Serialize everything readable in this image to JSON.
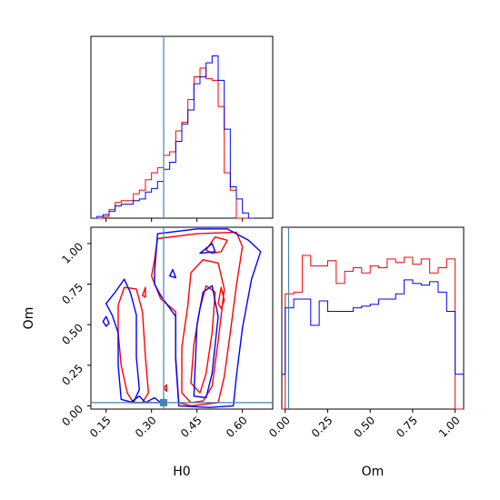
{
  "chart_data": {
    "type": "corner",
    "parameters": [
      "H0",
      "Om"
    ],
    "truth": {
      "H0": 0.34,
      "Om": 0.02
    },
    "truth_color": "#4682b4",
    "series": [
      {
        "color": "#ff0000"
      },
      {
        "color": "#0000ff"
      }
    ],
    "panels": {
      "h0_hist": {
        "type": "histogram",
        "xlim": [
          0.1,
          0.7
        ],
        "bin_edges": [
          0.1,
          0.12,
          0.14,
          0.16,
          0.18,
          0.2,
          0.22,
          0.24,
          0.26,
          0.28,
          0.3,
          0.32,
          0.34,
          0.36,
          0.38,
          0.4,
          0.42,
          0.44,
          0.46,
          0.48,
          0.5,
          0.52,
          0.54,
          0.56,
          0.58,
          0.6,
          0.62,
          0.64
        ],
        "counts": [
          [
            0.0,
            0.0,
            0.01,
            0.05,
            0.09,
            0.1,
            0.1,
            0.14,
            0.16,
            0.22,
            0.26,
            0.29,
            0.36,
            0.38,
            0.5,
            0.55,
            0.68,
            0.81,
            0.86,
            0.8,
            0.79,
            0.64,
            0.26,
            0.16,
            0.0,
            0.0,
            0.0
          ],
          [
            0.0,
            0.01,
            0.02,
            0.04,
            0.07,
            0.08,
            0.08,
            0.1,
            0.11,
            0.15,
            0.17,
            0.21,
            0.28,
            0.32,
            0.44,
            0.54,
            0.62,
            0.77,
            0.81,
            0.89,
            0.93,
            0.79,
            0.51,
            0.18,
            0.11,
            0.03,
            0.0
          ]
        ]
      },
      "om_hist": {
        "type": "histogram",
        "xlim": [
          -0.02,
          1.05
        ],
        "bin_edges": [
          -0.02,
          0.0,
          0.05,
          0.1,
          0.15,
          0.2,
          0.25,
          0.3,
          0.35,
          0.4,
          0.45,
          0.5,
          0.55,
          0.6,
          0.65,
          0.7,
          0.75,
          0.8,
          0.85,
          0.9,
          0.95,
          1.0,
          1.05
        ],
        "counts": [
          [
            0.0,
            0.66,
            0.67,
            0.88,
            0.82,
            0.82,
            0.85,
            0.72,
            0.79,
            0.81,
            0.78,
            0.82,
            0.81,
            0.86,
            0.84,
            0.87,
            0.83,
            0.86,
            0.78,
            0.81,
            0.86,
            0.0
          ],
          [
            0.2,
            0.58,
            0.63,
            0.63,
            0.48,
            0.62,
            0.56,
            0.56,
            0.56,
            0.58,
            0.59,
            0.6,
            0.63,
            0.63,
            0.66,
            0.74,
            0.72,
            0.71,
            0.73,
            0.67,
            0.56,
            0.2
          ]
        ]
      },
      "h0_om_2d": {
        "type": "contour",
        "xlim": [
          0.1,
          0.7
        ],
        "ylim": [
          -0.02,
          1.1
        ],
        "contours": [
          {
            "series": 0,
            "points": [
              [
                0.22,
                0.08
              ],
              [
                0.2,
                0.25
              ],
              [
                0.19,
                0.45
              ],
              [
                0.19,
                0.62
              ],
              [
                0.21,
                0.73
              ],
              [
                0.25,
                0.72
              ],
              [
                0.27,
                0.58
              ],
              [
                0.28,
                0.3
              ],
              [
                0.29,
                0.08
              ],
              [
                0.27,
                0.02
              ],
              [
                0.24,
                0.02
              ]
            ]
          },
          {
            "series": 0,
            "points": [
              [
                0.31,
                0.9
              ],
              [
                0.32,
                1.03
              ],
              [
                0.45,
                1.06
              ],
              [
                0.58,
                1.07
              ],
              [
                0.6,
                0.98
              ],
              [
                0.58,
                0.74
              ],
              [
                0.56,
                0.45
              ],
              [
                0.54,
                0.18
              ],
              [
                0.52,
                0.02
              ],
              [
                0.43,
                0.0
              ],
              [
                0.39,
                0.02
              ],
              [
                0.38,
                0.3
              ],
              [
                0.38,
                0.58
              ],
              [
                0.33,
                0.66
              ],
              [
                0.3,
                0.8
              ]
            ]
          },
          {
            "series": 0,
            "points": [
              [
                0.4,
                0.08
              ],
              [
                0.4,
                0.36
              ],
              [
                0.42,
                0.62
              ],
              [
                0.43,
                0.82
              ],
              [
                0.47,
                0.9
              ],
              [
                0.52,
                0.88
              ],
              [
                0.54,
                0.72
              ],
              [
                0.52,
                0.4
              ],
              [
                0.5,
                0.12
              ],
              [
                0.47,
                0.03
              ],
              [
                0.43,
                0.02
              ]
            ]
          },
          {
            "series": 0,
            "points": [
              [
                0.43,
                0.14
              ],
              [
                0.44,
                0.38
              ],
              [
                0.46,
                0.6
              ],
              [
                0.48,
                0.74
              ],
              [
                0.51,
                0.7
              ],
              [
                0.5,
                0.45
              ],
              [
                0.48,
                0.2
              ],
              [
                0.46,
                0.08
              ]
            ]
          },
          {
            "series": 0,
            "points": [
              [
                0.48,
                0.96
              ],
              [
                0.51,
                1.04
              ],
              [
                0.55,
                1.02
              ],
              [
                0.53,
                0.95
              ],
              [
                0.5,
                0.94
              ]
            ]
          },
          {
            "series": 0,
            "points": [
              [
                0.52,
                0.63
              ],
              [
                0.53,
                0.73
              ],
              [
                0.54,
                0.65
              ],
              [
                0.53,
                0.6
              ]
            ]
          },
          {
            "series": 0,
            "points": [
              [
                0.27,
                0.68
              ],
              [
                0.28,
                0.73
              ],
              [
                0.28,
                0.67
              ]
            ]
          },
          {
            "series": 0,
            "points": [
              [
                0.35,
                0.13
              ],
              [
                0.35,
                0.09
              ],
              [
                0.34,
                0.11
              ]
            ]
          },
          {
            "series": 1,
            "points": [
              [
                0.2,
                0.04
              ],
              [
                0.19,
                0.25
              ],
              [
                0.19,
                0.45
              ],
              [
                0.17,
                0.56
              ],
              [
                0.15,
                0.63
              ],
              [
                0.18,
                0.7
              ],
              [
                0.21,
                0.78
              ],
              [
                0.23,
                0.7
              ],
              [
                0.25,
                0.56
              ],
              [
                0.25,
                0.3
              ],
              [
                0.26,
                0.1
              ],
              [
                0.24,
                0.02
              ]
            ]
          },
          {
            "series": 1,
            "points": [
              [
                0.31,
                0.82
              ],
              [
                0.32,
                1.06
              ],
              [
                0.45,
                1.09
              ],
              [
                0.55,
                1.09
              ],
              [
                0.62,
                1.02
              ],
              [
                0.66,
                0.95
              ],
              [
                0.63,
                0.78
              ],
              [
                0.6,
                0.48
              ],
              [
                0.58,
                0.18
              ],
              [
                0.57,
                0.0
              ],
              [
                0.49,
                -0.01
              ],
              [
                0.39,
                0.0
              ],
              [
                0.38,
                0.28
              ],
              [
                0.38,
                0.55
              ],
              [
                0.33,
                0.68
              ],
              [
                0.31,
                0.75
              ]
            ]
          },
          {
            "series": 1,
            "points": [
              [
                0.14,
                0.52
              ],
              [
                0.15,
                0.55
              ],
              [
                0.16,
                0.51
              ],
              [
                0.15,
                0.49
              ]
            ]
          },
          {
            "series": 1,
            "points": [
              [
                0.36,
                0.8
              ],
              [
                0.37,
                0.84
              ],
              [
                0.38,
                0.79
              ]
            ]
          },
          {
            "series": 1,
            "points": [
              [
                0.46,
                0.94
              ],
              [
                0.5,
                1.0
              ],
              [
                0.51,
                0.95
              ]
            ]
          },
          {
            "series": 1,
            "points": [
              [
                0.23,
                0.02
              ],
              [
                0.26,
                0.06
              ],
              [
                0.28,
                0.02
              ],
              [
                0.31,
                0.05
              ],
              [
                0.33,
                0.02
              ]
            ]
          },
          {
            "series": 1,
            "points": [
              [
                0.44,
                0.06
              ],
              [
                0.45,
                0.5
              ],
              [
                0.47,
                0.7
              ],
              [
                0.5,
                0.74
              ],
              [
                0.52,
                0.55
              ],
              [
                0.5,
                0.2
              ],
              [
                0.48,
                0.05
              ]
            ]
          }
        ]
      }
    },
    "axes": {
      "h0_ticks": [
        "0.15",
        "0.30",
        "0.45",
        "0.60"
      ],
      "h0_tick_values": [
        0.15,
        0.3,
        0.45,
        0.6
      ],
      "om_ticks": [
        "0.00",
        "0.25",
        "0.50",
        "0.75",
        "1.00"
      ],
      "om_tick_values": [
        0.0,
        0.25,
        0.5,
        0.75,
        1.0
      ],
      "h0_label": "H0",
      "om_label": "Om"
    }
  }
}
